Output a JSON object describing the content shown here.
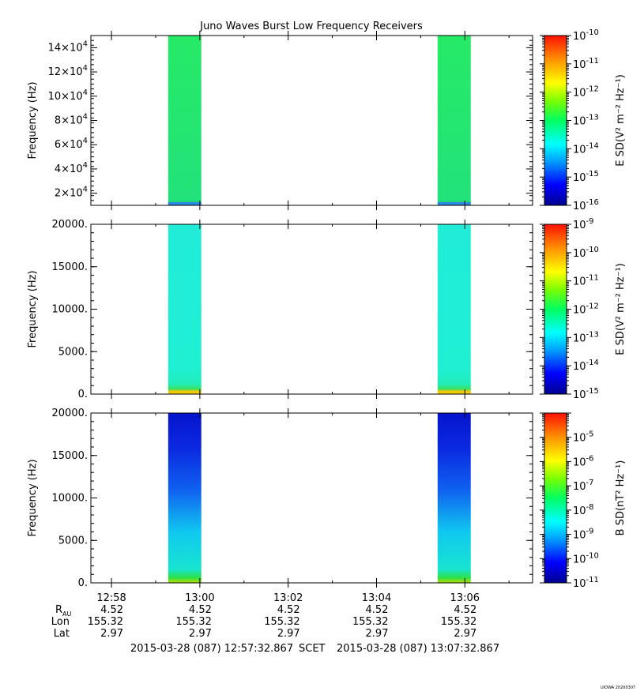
{
  "chart_data": {
    "title": "Juno Waves Burst Low Frequency Receivers",
    "type": "heatmap",
    "x_axis": {
      "ticks": [
        "12:58",
        "13:00",
        "13:02",
        "13:04",
        "13:06"
      ],
      "tick_minutes": [
        0.4667,
        2.4667,
        4.4667,
        6.4667,
        8.4667
      ],
      "range_minutes": [
        0,
        10
      ],
      "scet_label": "SCET",
      "start_label": "2015-03-28 (087) 12:57:32.867",
      "end_label": "2015-03-28 (087) 13:07:32.867"
    },
    "ephemeris": {
      "rows": [
        {
          "label": "R",
          "sub": "AU",
          "values": [
            "4.52",
            "4.52",
            "4.52",
            "4.52",
            "4.52"
          ]
        },
        {
          "label": "Lon",
          "sub": "",
          "values": [
            "155.32",
            "155.32",
            "155.32",
            "155.32",
            "155.32"
          ]
        },
        {
          "label": "Lat",
          "sub": "",
          "values": [
            "2.97",
            "2.97",
            "2.97",
            "2.97",
            "2.97"
          ]
        }
      ]
    },
    "bursts_minutes": [
      [
        1.75,
        2.5
      ],
      [
        7.85,
        8.6
      ]
    ],
    "panels": [
      {
        "ylabel": "Frequency (Hz)",
        "ylim": [
          10000,
          150000
        ],
        "yticks": [
          {
            "v": 20000,
            "m": "2",
            "e": "4"
          },
          {
            "v": 40000,
            "m": "4",
            "e": "4"
          },
          {
            "v": 60000,
            "m": "6",
            "e": "4"
          },
          {
            "v": 80000,
            "m": "8",
            "e": "4"
          },
          {
            "v": 100000,
            "m": "10",
            "e": "4"
          },
          {
            "v": 120000,
            "m": "12",
            "e": "4"
          },
          {
            "v": 140000,
            "m": "14",
            "e": "4"
          }
        ],
        "colorbar": {
          "label": "E SD(V² m⁻² Hz⁻¹)",
          "exp_min": -16,
          "exp_max": -10,
          "ticks": [
            "-10",
            "-11",
            "-12",
            "-13",
            "-14",
            "-15",
            "-16"
          ]
        },
        "fill": "panel1"
      },
      {
        "ylabel": "Frequency (Hz)",
        "ylim": [
          0,
          20000
        ],
        "yticks": [
          {
            "v": 0,
            "t": "0."
          },
          {
            "v": 5000,
            "t": "5000."
          },
          {
            "v": 10000,
            "t": "10000."
          },
          {
            "v": 15000,
            "t": "15000."
          },
          {
            "v": 20000,
            "t": "20000."
          }
        ],
        "colorbar": {
          "label": "E SD(V² m⁻² Hz⁻¹)",
          "exp_min": -15,
          "exp_max": -9,
          "ticks": [
            "-9",
            "-10",
            "-11",
            "-12",
            "-13",
            "-14",
            "-15"
          ]
        },
        "fill": "panel2"
      },
      {
        "ylabel": "Frequency (Hz)",
        "ylim": [
          0,
          20000
        ],
        "yticks": [
          {
            "v": 0,
            "t": "0."
          },
          {
            "v": 5000,
            "t": "5000."
          },
          {
            "v": 10000,
            "t": "10000."
          },
          {
            "v": 15000,
            "t": "15000."
          },
          {
            "v": 20000,
            "t": "20000."
          }
        ],
        "colorbar": {
          "label": "B SD(nT² Hz⁻¹)",
          "exp_min": -11,
          "exp_max": -4,
          "ticks": [
            "-5",
            "-6",
            "-7",
            "-8",
            "-9",
            "-10",
            "-11"
          ]
        },
        "fill": "panel3"
      }
    ],
    "footer_stamp": "UIOWA 20200307"
  }
}
